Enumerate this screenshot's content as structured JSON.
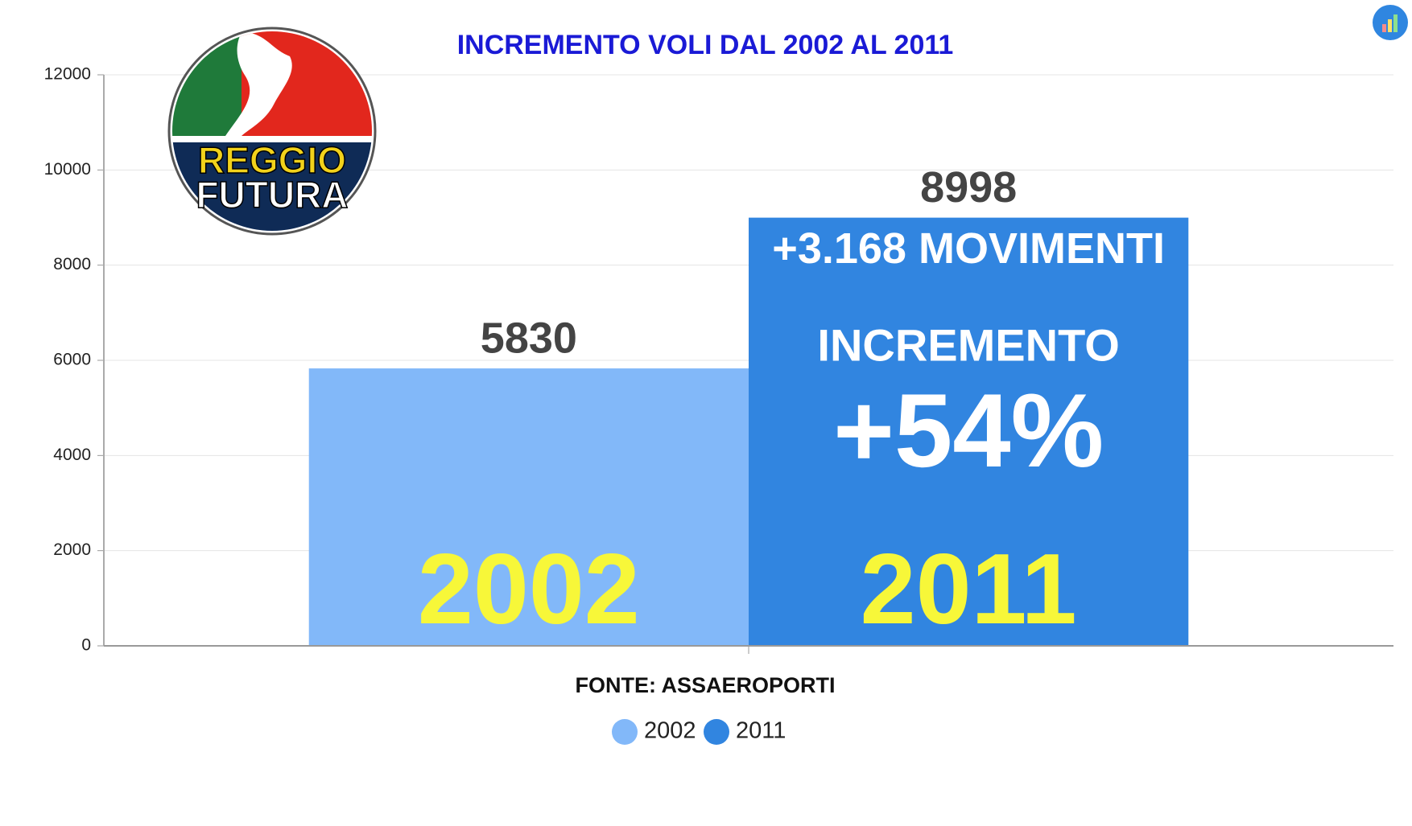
{
  "chart_data": {
    "type": "bar",
    "title": "INCREMENTO VOLI DAL 2002 AL 2011",
    "categories": [
      null
    ],
    "series": [
      {
        "name": "2002",
        "color": "#82b8f9",
        "values": [
          5830
        ]
      },
      {
        "name": "2011",
        "color": "#3185e0",
        "values": [
          8998
        ]
      }
    ],
    "ylim": [
      0,
      12000
    ],
    "yticks": [
      0,
      2000,
      4000,
      6000,
      8000,
      10000,
      12000
    ],
    "grid": true,
    "annotations": [
      "+3.168 MOVIMENTI",
      "INCREMENTO",
      "+54%",
      "2002",
      "2011"
    ],
    "source": "FONTE: ASSAEROPORTI",
    "logo": [
      "REGGIO",
      "FUTURA"
    ],
    "legend": "bottom"
  }
}
